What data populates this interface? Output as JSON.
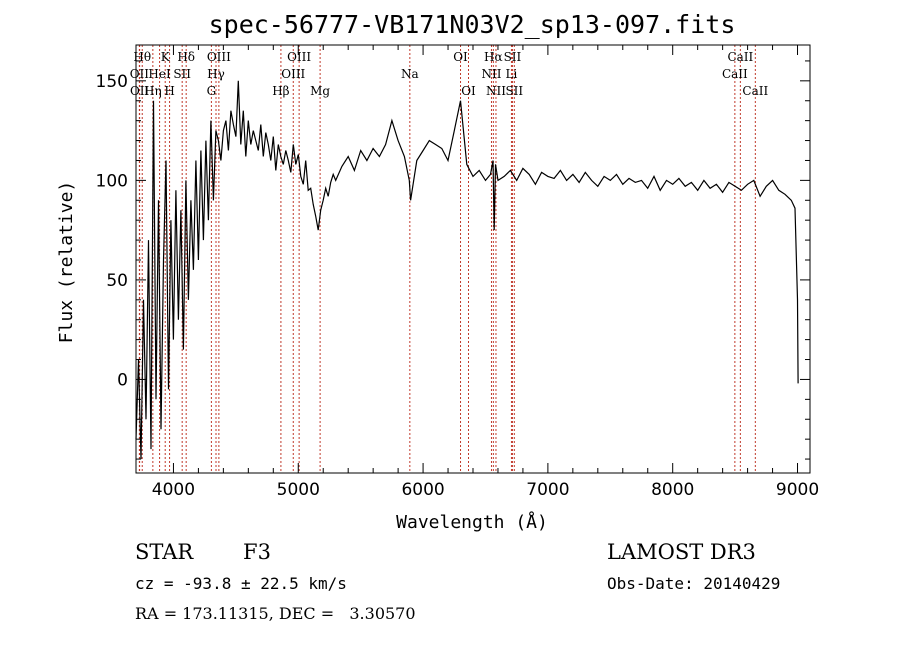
{
  "chart_data": {
    "type": "line",
    "title": "spec-56777-VB171N03V2_sp13-097.fits",
    "xlabel": "Wavelength (Å)",
    "ylabel": "Flux (relative)",
    "xlim": [
      3700,
      9100
    ],
    "ylim": [
      -47,
      168
    ],
    "xticks": [
      4000,
      5000,
      6000,
      7000,
      8000,
      9000
    ],
    "yticks": [
      0,
      50,
      100,
      150
    ],
    "grid": false,
    "series": [
      {
        "name": "flux",
        "x": [
          3700,
          3720,
          3740,
          3760,
          3780,
          3800,
          3820,
          3840,
          3860,
          3880,
          3900,
          3920,
          3940,
          3960,
          3980,
          4000,
          4020,
          4040,
          4060,
          4080,
          4100,
          4120,
          4140,
          4160,
          4180,
          4200,
          4220,
          4240,
          4260,
          4280,
          4300,
          4320,
          4340,
          4360,
          4380,
          4400,
          4420,
          4440,
          4460,
          4480,
          4500,
          4520,
          4540,
          4560,
          4580,
          4600,
          4620,
          4640,
          4660,
          4680,
          4700,
          4720,
          4740,
          4760,
          4780,
          4800,
          4820,
          4840,
          4860,
          4880,
          4900,
          4920,
          4940,
          4960,
          4980,
          5000,
          5020,
          5040,
          5060,
          5080,
          5100,
          5120,
          5140,
          5160,
          5180,
          5200,
          5220,
          5240,
          5260,
          5280,
          5300,
          5350,
          5400,
          5450,
          5500,
          5550,
          5600,
          5650,
          5700,
          5750,
          5800,
          5850,
          5890,
          5900,
          5950,
          6000,
          6050,
          6100,
          6150,
          6200,
          6250,
          6300,
          6350,
          6400,
          6450,
          6500,
          6540,
          6560,
          6570,
          6580,
          6600,
          6650,
          6700,
          6750,
          6800,
          6850,
          6900,
          6950,
          7000,
          7050,
          7100,
          7150,
          7200,
          7250,
          7300,
          7350,
          7400,
          7450,
          7500,
          7550,
          7600,
          7650,
          7700,
          7750,
          7800,
          7850,
          7900,
          7950,
          8000,
          8050,
          8100,
          8150,
          8200,
          8250,
          8300,
          8350,
          8400,
          8450,
          8500,
          8550,
          8600,
          8650,
          8700,
          8750,
          8800,
          8850,
          8900,
          8950,
          8980,
          9000,
          9005
        ],
        "values": [
          -30,
          10,
          -40,
          40,
          -20,
          70,
          -35,
          140,
          -10,
          90,
          -25,
          60,
          110,
          -5,
          80,
          20,
          95,
          30,
          85,
          15,
          100,
          40,
          90,
          55,
          110,
          60,
          115,
          70,
          120,
          80,
          130,
          90,
          125,
          120,
          110,
          125,
          130,
          115,
          135,
          128,
          122,
          150,
          118,
          135,
          112,
          130,
          118,
          125,
          120,
          115,
          128,
          112,
          124,
          118,
          110,
          122,
          105,
          118,
          112,
          108,
          115,
          110,
          104,
          118,
          108,
          113,
          102,
          98,
          110,
          95,
          96,
          88,
          82,
          75,
          85,
          90,
          96,
          92,
          99,
          103,
          100,
          107,
          112,
          105,
          115,
          110,
          116,
          112,
          118,
          130,
          120,
          112,
          100,
          90,
          110,
          115,
          120,
          118,
          116,
          110,
          125,
          140,
          108,
          102,
          105,
          100,
          103,
          110,
          75,
          108,
          100,
          102,
          105,
          100,
          106,
          103,
          98,
          104,
          102,
          101,
          105,
          100,
          103,
          99,
          104,
          100,
          97,
          102,
          100,
          103,
          98,
          101,
          99,
          100,
          96,
          102,
          95,
          100,
          98,
          101,
          97,
          99,
          95,
          100,
          96,
          98,
          94,
          99,
          97,
          95,
          98,
          100,
          92,
          97,
          100,
          95,
          93,
          90,
          86,
          40,
          -2
        ]
      }
    ],
    "lines": [
      {
        "name": "OII",
        "x": 3727,
        "row": 2
      },
      {
        "name": "Hθ",
        "x": 3750,
        "row": 1
      },
      {
        "name": "OII",
        "x": 3729,
        "row": 3
      },
      {
        "name": "Hη",
        "x": 3835,
        "row": 3
      },
      {
        "name": "K",
        "x": 3934,
        "row": 1
      },
      {
        "name": "H",
        "x": 3969,
        "row": 3
      },
      {
        "name": "HeI",
        "x": 3889,
        "row": 2
      },
      {
        "name": "SII",
        "x": 4070,
        "row": 2
      },
      {
        "name": "Hδ",
        "x": 4102,
        "row": 1
      },
      {
        "name": "OIII",
        "x": 4364,
        "row": 1
      },
      {
        "name": "Hγ",
        "x": 4341,
        "row": 2
      },
      {
        "name": "G",
        "x": 4304,
        "row": 3
      },
      {
        "name": "Hβ",
        "x": 4861,
        "row": 3
      },
      {
        "name": "OIII",
        "x": 4960,
        "row": 2
      },
      {
        "name": "OIII",
        "x": 5007,
        "row": 1
      },
      {
        "name": "Mg",
        "x": 5175,
        "row": 3
      },
      {
        "name": "Na",
        "x": 5894,
        "row": 2
      },
      {
        "name": "OI",
        "x": 6300,
        "row": 1
      },
      {
        "name": "OI",
        "x": 6364,
        "row": 3
      },
      {
        "name": "Hα",
        "x": 6563,
        "row": 1
      },
      {
        "name": "NII",
        "x": 6548,
        "row": 2
      },
      {
        "name": "NII",
        "x": 6584,
        "row": 3
      },
      {
        "name": "SII",
        "x": 6716,
        "row": 1
      },
      {
        "name": "Li",
        "x": 6708,
        "row": 2
      },
      {
        "name": "SII",
        "x": 6731,
        "row": 3
      },
      {
        "name": "CaII",
        "x": 8498,
        "row": 2
      },
      {
        "name": "CaII",
        "x": 8542,
        "row": 1
      },
      {
        "name": "CaII",
        "x": 8662,
        "row": 3
      }
    ]
  },
  "info": {
    "class_label": "STAR",
    "subclass": "F3",
    "survey": "LAMOST DR3",
    "cz": "cz = -93.8 ± 22.5 km/s",
    "obs_date": "Obs-Date: 20140429",
    "coords": "RA = 173.11315, DEC =   3.30570"
  },
  "colors": {
    "line_marker": "#c0392b",
    "spectrum": "#000000"
  }
}
